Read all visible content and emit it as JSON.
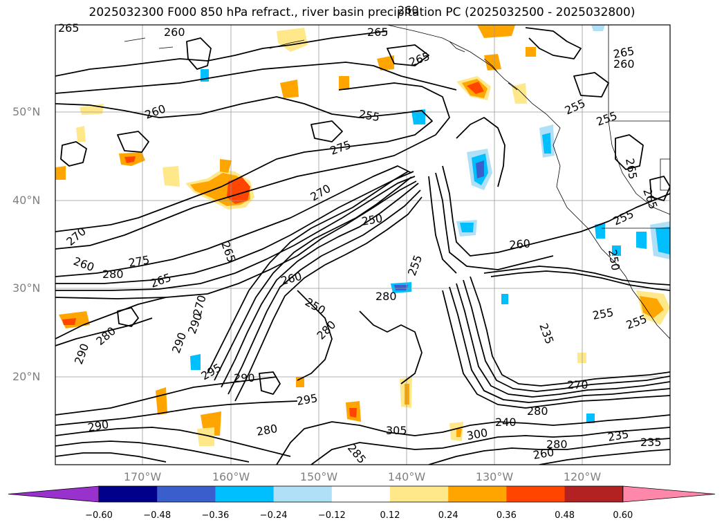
{
  "title": "2025032300 F000 850 hPa refract., river basin precipitation PC (2025032500 - 2025032800)",
  "lat_labels": [
    "50°N",
    "40°N",
    "30°N",
    "20°N"
  ],
  "lon_labels": [
    "170°W",
    "160°W",
    "150°W",
    "140°W",
    "130°W",
    "120°W"
  ],
  "colorbar": {
    "ticks": [
      "−0.60",
      "−0.48",
      "−0.36",
      "−0.24",
      "−0.12",
      "0.12",
      "0.24",
      "0.36",
      "0.48",
      "0.60"
    ],
    "colors": [
      "#9932cc",
      "#00008b",
      "#3a5fcd",
      "#00bfff",
      "#b0e0f8",
      "#ffffff",
      "#ffe88a",
      "#ffa500",
      "#ff4500",
      "#b22222",
      "#ff88aa"
    ]
  },
  "contour_labels": [
    "265",
    "260",
    "265",
    "265",
    "260",
    "265",
    "260",
    "255",
    "255",
    "255",
    "265",
    "260",
    "275",
    "265",
    "270",
    "250",
    "255",
    "270",
    "260",
    "265",
    "250",
    "260",
    "275",
    "280",
    "265",
    "260",
    "280",
    "250",
    "255",
    "290",
    "290",
    "280",
    "290",
    "270",
    "280",
    "295",
    "290",
    "295",
    "280",
    "290",
    "285",
    "305",
    "300",
    "240",
    "260",
    "280",
    "270",
    "280",
    "235",
    "235",
    "235",
    "255",
    "255"
  ]
}
